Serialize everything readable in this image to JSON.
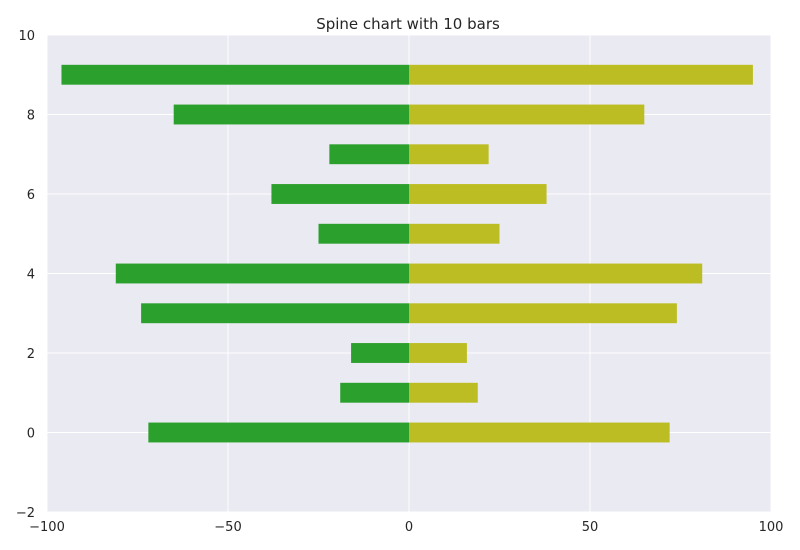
{
  "chart_data": {
    "type": "bar",
    "orientation": "horizontal-diverging",
    "title": "Spine chart with 10 bars",
    "xlabel": "",
    "ylabel": "",
    "xlim": [
      -100,
      100
    ],
    "ylim": [
      -2,
      10
    ],
    "xticks": [
      -100,
      -50,
      0,
      50,
      100
    ],
    "xtick_labels": [
      "−100",
      "−50",
      "0",
      "50",
      "100"
    ],
    "yticks": [
      -2,
      0,
      2,
      4,
      6,
      8,
      10
    ],
    "ytick_labels": [
      "−2",
      "0",
      "2",
      "4",
      "6",
      "8",
      "10"
    ],
    "grid": true,
    "legend": "none",
    "y": [
      0,
      1,
      2,
      3,
      4,
      5,
      6,
      7,
      8,
      9
    ],
    "series": [
      {
        "values": [
          -72,
          -19,
          -16,
          -74,
          -81,
          -25,
          -38,
          -22,
          -65,
          -96
        ],
        "color": "#2ca02c"
      },
      {
        "values": [
          72,
          19,
          16,
          74,
          81,
          25,
          38,
          22,
          65,
          95
        ],
        "color": "#bcbd22"
      }
    ],
    "background_color": "#eaeaf2",
    "grid_color": "#ffffff"
  }
}
